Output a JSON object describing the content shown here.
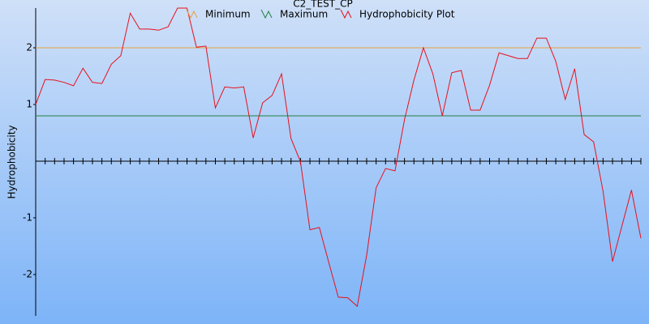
{
  "chart_data": {
    "type": "line",
    "title": "C2_TEST_CP",
    "y_label": "Hydrophobicity",
    "x": [
      1,
      2,
      3,
      4,
      5,
      6,
      7,
      8,
      9,
      10,
      11,
      12,
      13,
      14,
      15,
      16,
      17,
      18,
      19,
      20,
      21,
      22,
      23,
      24,
      25,
      26,
      27,
      28,
      29,
      30,
      31,
      32,
      33,
      34,
      35,
      36,
      37,
      38,
      39,
      40,
      41,
      42,
      43,
      44,
      45,
      46,
      47,
      48,
      49,
      50,
      51,
      52,
      53,
      54,
      55,
      56,
      57,
      58,
      59,
      60,
      61,
      62,
      63,
      64,
      65
    ],
    "xlim": [
      1,
      65
    ],
    "ylim": [
      -2.73,
      2.7
    ],
    "yticks": [
      -2,
      -1,
      1,
      2
    ],
    "grid": false,
    "series": [
      {
        "name": "Minimum",
        "color": "#e8a040",
        "x": [
          1,
          65
        ],
        "values": [
          2,
          2
        ]
      },
      {
        "name": "Maximum",
        "color": "#208040",
        "x": [
          1,
          65
        ],
        "values": [
          0.8,
          0.8
        ]
      },
      {
        "name": "Hydrophobicity Plot",
        "color": "#e8101c",
        "values": [
          1.0,
          1.44,
          1.43,
          1.39,
          1.33,
          1.64,
          1.39,
          1.37,
          1.71,
          1.86,
          2.61,
          2.33,
          2.33,
          2.31,
          2.37,
          2.7,
          2.7,
          2.01,
          2.03,
          0.94,
          1.31,
          1.29,
          1.31,
          0.41,
          1.03,
          1.16,
          1.54,
          0.4,
          -0.01,
          -1.21,
          -1.17,
          -1.79,
          -2.4,
          -2.41,
          -2.56,
          -1.66,
          -0.47,
          -0.13,
          -0.17,
          0.73,
          1.43,
          2.0,
          1.54,
          0.8,
          1.56,
          1.6,
          0.9,
          0.9,
          1.34,
          1.91,
          1.86,
          1.81,
          1.81,
          2.17,
          2.17,
          1.76,
          1.09,
          1.63,
          0.47,
          0.34,
          -0.53,
          -1.77,
          -1.14,
          -0.51,
          -1.36
        ]
      }
    ]
  }
}
